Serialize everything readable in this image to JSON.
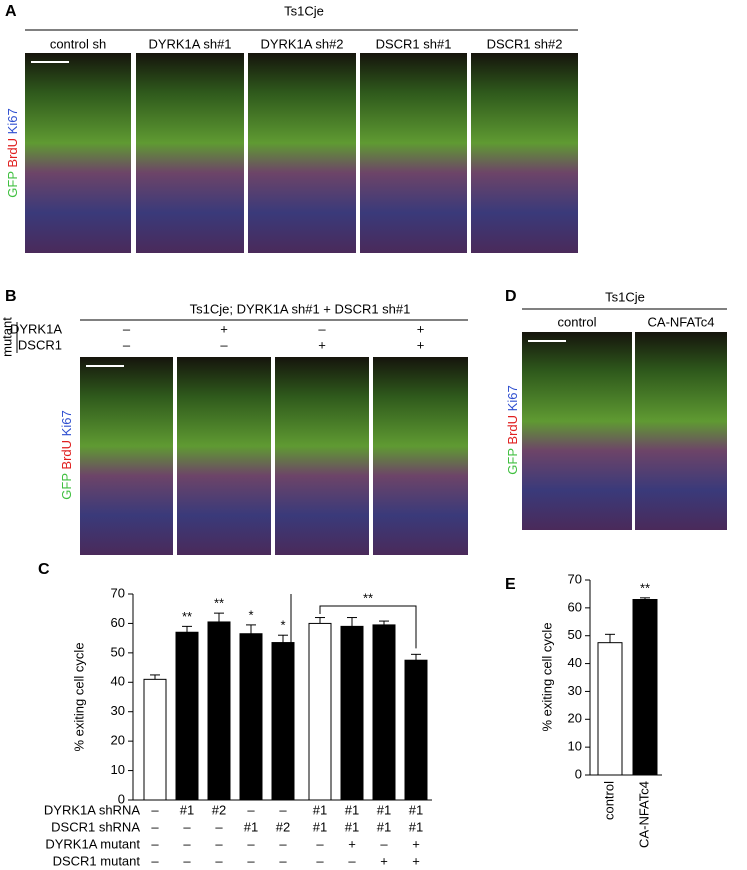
{
  "panels": [
    {
      "label": "A",
      "header": "Ts1Cje",
      "columns": [
        "control sh",
        "DYRK1A sh#1",
        "DYRK1A sh#2",
        "DSCR1 sh#1",
        "DSCR1 sh#2"
      ],
      "stain": [
        "GFP",
        "BrdU",
        "Ki67"
      ]
    },
    {
      "label": "B",
      "header": "Ts1Cje; DYRK1A sh#1 + DSCR1 sh#1",
      "group": "mutant",
      "rows": [
        {
          "name": "DYRK1A",
          "values": [
            "–",
            "+",
            "–",
            "+"
          ]
        },
        {
          "name": "DSCR1",
          "values": [
            "–",
            "–",
            "+",
            "+"
          ]
        }
      ],
      "stain": [
        "GFP",
        "BrdU",
        "Ki67"
      ]
    },
    {
      "label": "D",
      "header": "Ts1Cje",
      "columns": [
        "control",
        "CA-NFATc4"
      ],
      "stain": [
        "GFP",
        "BrdU",
        "Ki67"
      ]
    }
  ],
  "chart_data": [
    {
      "type": "bar",
      "panel_label": "C",
      "y_label": "% exiting cell cycle",
      "values": [
        41,
        57,
        60.5,
        56.5,
        53.5
      ],
      "errors": [
        1.5,
        2,
        3,
        3,
        2.5
      ],
      "colors": [
        "#ffffff",
        "#000000",
        "#000000",
        "#000000",
        "#000000"
      ],
      "significance": [
        null,
        "**",
        "**",
        "*",
        "*"
      ],
      "ylim": [
        0,
        70
      ],
      "yticks": [
        0,
        10,
        20,
        30,
        40,
        50,
        60,
        70
      ],
      "conditions": [
        {
          "name": "DYRK1A shRNA",
          "values": [
            "–",
            "#1",
            "#2",
            "–",
            "–"
          ]
        },
        {
          "name": "DSCR1 shRNA",
          "values": [
            "–",
            "–",
            "–",
            "#1",
            "#2"
          ]
        },
        {
          "name": "DYRK1A mutant",
          "values": [
            "–",
            "–",
            "–",
            "–",
            "–"
          ]
        },
        {
          "name": "DSCR1 mutant",
          "values": [
            "–",
            "–",
            "–",
            "–",
            "–"
          ]
        }
      ]
    },
    {
      "type": "bar",
      "values": [
        60,
        59,
        59.5,
        47.5
      ],
      "errors": [
        2,
        3,
        1.3,
        2
      ],
      "colors": [
        "#ffffff",
        "#000000",
        "#000000",
        "#000000"
      ],
      "ylim": [
        0,
        70
      ],
      "bracket": {
        "between": [
          0,
          3
        ],
        "label": "**"
      },
      "conditions": [
        [
          "#1",
          "#1",
          "#1",
          "#1"
        ],
        [
          "#1",
          "#1",
          "#1",
          "#1"
        ],
        [
          "–",
          "+",
          "–",
          "+"
        ],
        [
          "–",
          "–",
          "+",
          "+"
        ]
      ]
    },
    {
      "type": "bar",
      "panel_label": "E",
      "y_label": "% exiting cell cycle",
      "categories": [
        "control",
        "CA-NFATc4"
      ],
      "values": [
        47.5,
        63
      ],
      "errors": [
        3,
        0.6
      ],
      "colors": [
        "#ffffff",
        "#000000"
      ],
      "significance": [
        null,
        "**"
      ],
      "ylim": [
        0,
        70
      ],
      "yticks": [
        0,
        10,
        20,
        30,
        40,
        50,
        60,
        70
      ]
    }
  ]
}
